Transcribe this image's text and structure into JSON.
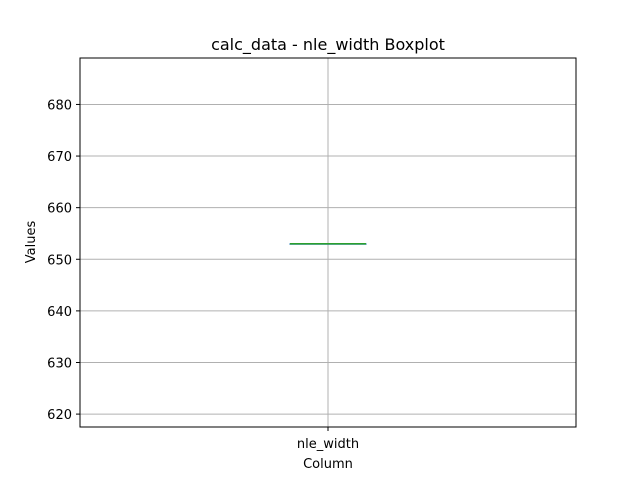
{
  "chart_data": {
    "type": "box",
    "title": "calc_data - nle_width Boxplot",
    "xlabel": "Column",
    "ylabel": "Values",
    "categories": [
      "nle_width"
    ],
    "boxes": [
      {
        "category": "nle_width",
        "min": 653,
        "q1": 653,
        "median": 653,
        "q3": 653,
        "max": 653
      }
    ],
    "ylim": [
      617.5,
      689
    ],
    "yticks": [
      620,
      630,
      640,
      650,
      660,
      670,
      680
    ],
    "grid": true,
    "colors": {
      "box": "#1f77b4",
      "median": "#2ca02c",
      "grid": "#b0b0b0",
      "axes": "#000000"
    }
  }
}
